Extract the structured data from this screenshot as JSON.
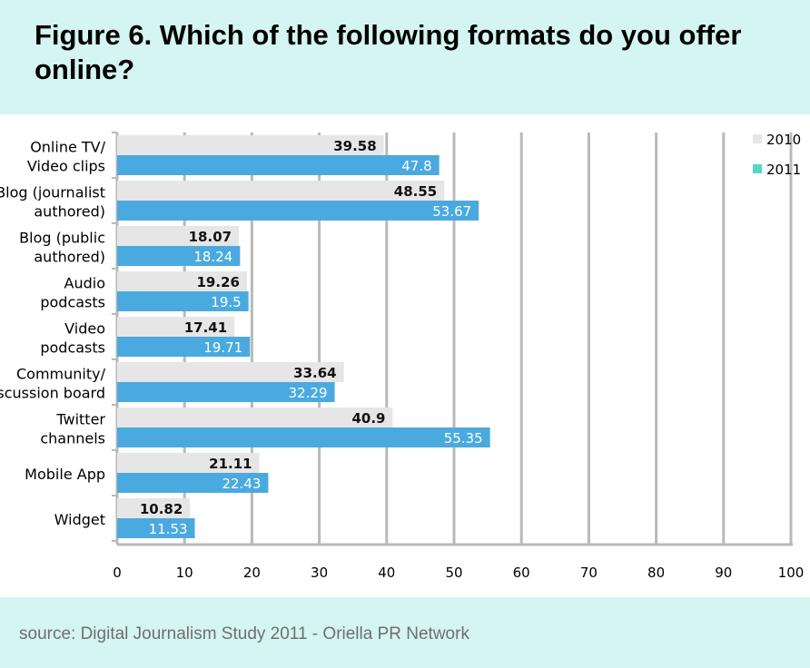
{
  "header": {
    "title": "Figure 6. Which of the following formats do you offer online?"
  },
  "footer": {
    "source": "source: Digital Journalism Study 2011 - Oriella PR Network"
  },
  "colors": {
    "background_band": "#d4f5f1",
    "series_2010": "#e6e6e6",
    "series_2011": "#4aaae0",
    "series_2011_legend": "#55d9c6",
    "gridline": "#b9b9b9"
  },
  "chart_data": {
    "type": "bar",
    "orientation": "horizontal",
    "categories": [
      [
        "Online TV/",
        "Video clips"
      ],
      [
        "Blog (journalist",
        "authored)"
      ],
      [
        "Blog (public",
        "authored)"
      ],
      [
        "Audio",
        "podcasts"
      ],
      [
        "Video",
        "podcasts"
      ],
      [
        "Community/",
        "iscussion board"
      ],
      [
        "Twitter",
        "channels"
      ],
      [
        "Mobile App"
      ],
      [
        "Widget"
      ]
    ],
    "series": [
      {
        "name": "2010",
        "values": [
          39.58,
          48.55,
          18.07,
          19.26,
          17.41,
          33.64,
          40.9,
          21.11,
          10.82
        ]
      },
      {
        "name": "2011",
        "values": [
          47.8,
          53.67,
          18.24,
          19.5,
          19.71,
          32.29,
          55.35,
          22.43,
          11.53
        ]
      }
    ],
    "xlim": [
      0,
      100
    ],
    "xticks": [
      0,
      10,
      20,
      30,
      40,
      50,
      60,
      70,
      80,
      90,
      100
    ],
    "grid": true,
    "legend": "top-right",
    "title": "Figure 6. Which of the following formats do you offer online?"
  }
}
